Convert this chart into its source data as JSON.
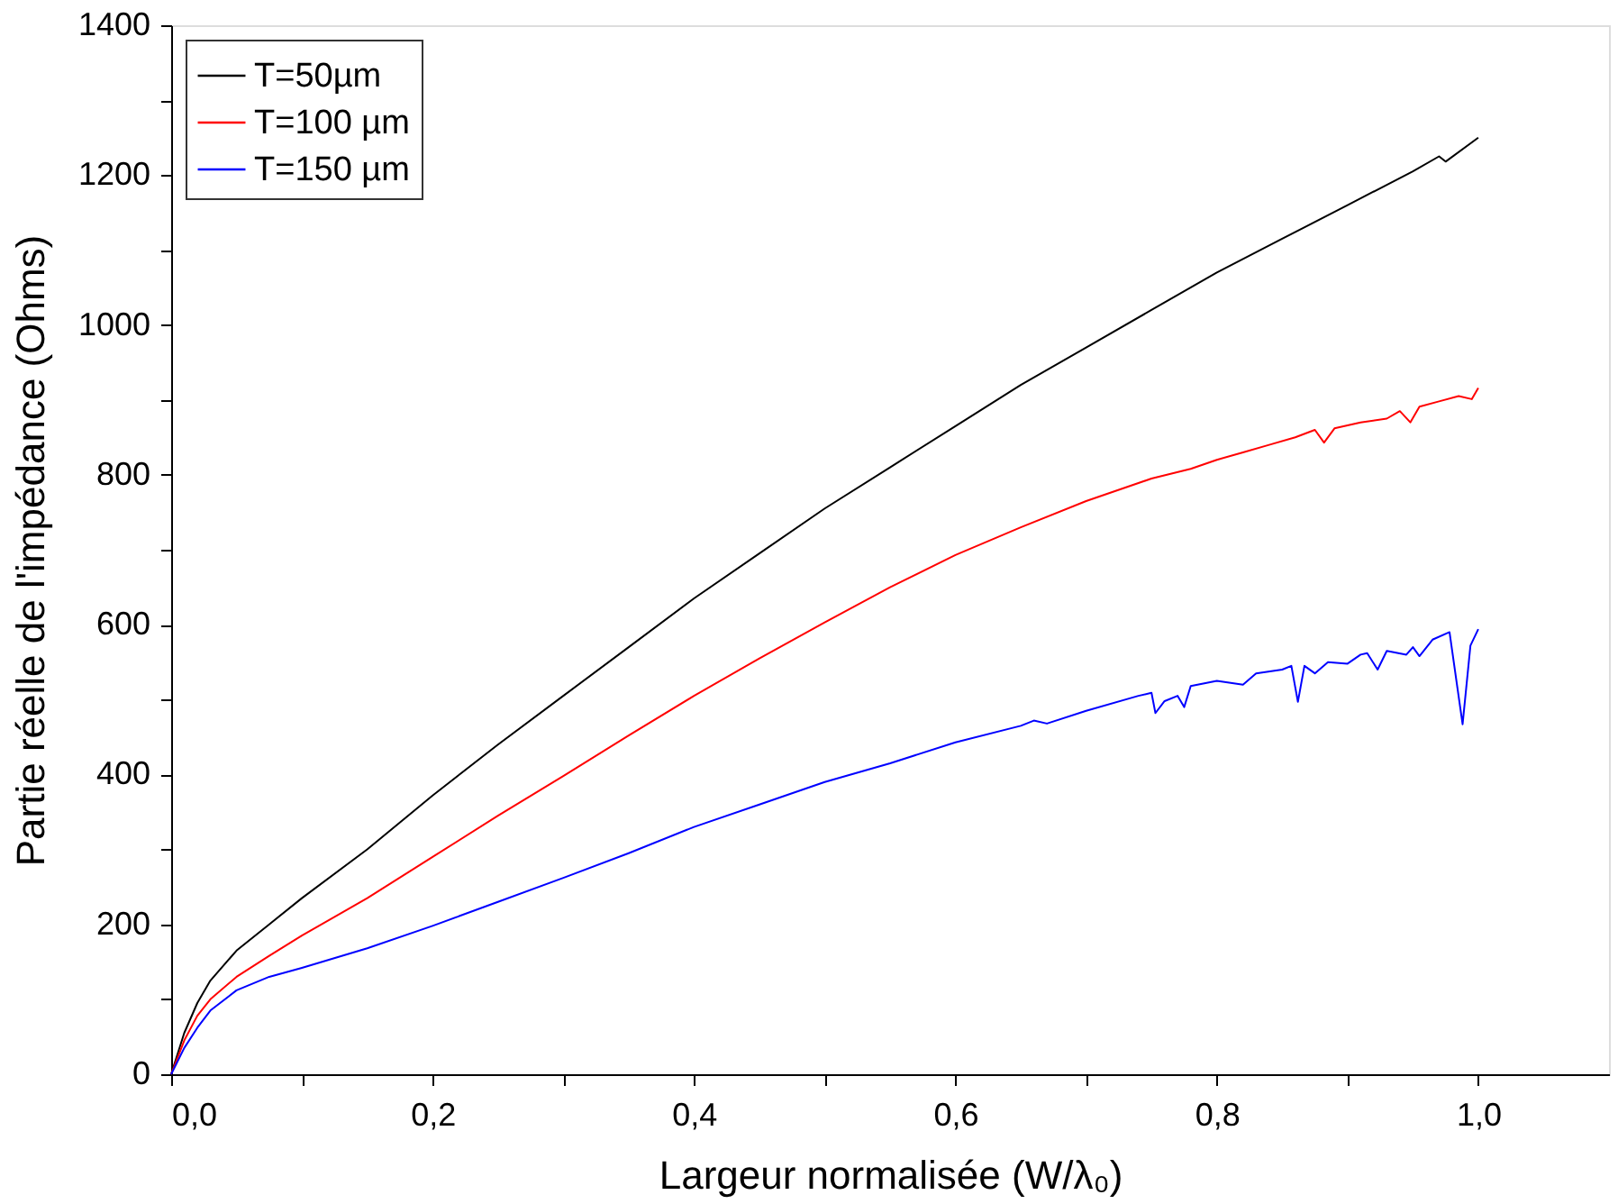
{
  "chart_data": {
    "type": "line",
    "xlabel": "Largeur normalisée (W/λ₀)",
    "ylabel": "Partie réelle de l'impédance (Ohms)",
    "xlim": [
      0,
      1.1
    ],
    "xticks": [
      {
        "value": 0,
        "label": "0,0"
      },
      {
        "value": 0.1,
        "label": null
      },
      {
        "value": 0.2,
        "label": "0,2"
      },
      {
        "value": 0.3,
        "label": null
      },
      {
        "value": 0.4,
        "label": "0,4"
      },
      {
        "value": 0.5,
        "label": null
      },
      {
        "value": 0.6,
        "label": "0,6"
      },
      {
        "value": 0.7,
        "label": null
      },
      {
        "value": 0.8,
        "label": "0,8"
      },
      {
        "value": 0.9,
        "label": null
      },
      {
        "value": 1.0,
        "label": "1,0"
      }
    ],
    "ylim": [
      0,
      1400
    ],
    "yticks": [
      0,
      {
        "value": 100,
        "label": null
      },
      200,
      {
        "value": 300,
        "label": null
      },
      400,
      {
        "value": 500,
        "label": null
      },
      600,
      {
        "value": 700,
        "label": null
      },
      800,
      {
        "value": 900,
        "label": null
      },
      1000,
      {
        "value": 1100,
        "label": null
      },
      1200,
      {
        "value": 1300,
        "label": null
      },
      1400
    ],
    "grid": false,
    "legend": "top left",
    "line_style": "solid",
    "marker": "none",
    "series": [
      {
        "name": "T=50µm",
        "color": "#000000",
        "x": [
          0,
          0.01,
          0.02,
          0.03,
          0.05,
          0.075,
          0.1,
          0.15,
          0.2,
          0.25,
          0.3,
          0.35,
          0.4,
          0.45,
          0.5,
          0.55,
          0.6,
          0.65,
          0.7,
          0.75,
          0.8,
          0.85,
          0.9,
          0.95,
          0.97,
          0.975,
          1.0
        ],
        "values": [
          0,
          55,
          95,
          125,
          165,
          200,
          235,
          300,
          372,
          440,
          505,
          570,
          635,
          695,
          755,
          810,
          865,
          920,
          970,
          1020,
          1070,
          1115,
          1160,
          1205,
          1225,
          1218,
          1250
        ]
      },
      {
        "name": "T=100 µm",
        "color": "#ff0000",
        "x": [
          0,
          0.01,
          0.02,
          0.03,
          0.05,
          0.075,
          0.1,
          0.15,
          0.2,
          0.25,
          0.3,
          0.35,
          0.4,
          0.45,
          0.5,
          0.55,
          0.6,
          0.65,
          0.7,
          0.75,
          0.78,
          0.8,
          0.82,
          0.84,
          0.86,
          0.875,
          0.882,
          0.89,
          0.91,
          0.93,
          0.94,
          0.948,
          0.955,
          0.97,
          0.985,
          0.995,
          1.0
        ],
        "values": [
          0,
          45,
          78,
          100,
          130,
          158,
          185,
          235,
          290,
          345,
          398,
          452,
          505,
          555,
          603,
          650,
          693,
          730,
          765,
          795,
          808,
          820,
          830,
          840,
          850,
          860,
          843,
          862,
          870,
          875,
          885,
          870,
          891,
          898,
          905,
          901,
          916
        ]
      },
      {
        "name": "T=150 µm",
        "color": "#0000ff",
        "x": [
          0,
          0.01,
          0.02,
          0.03,
          0.05,
          0.075,
          0.1,
          0.15,
          0.2,
          0.25,
          0.3,
          0.35,
          0.4,
          0.45,
          0.5,
          0.55,
          0.6,
          0.65,
          0.66,
          0.67,
          0.7,
          0.74,
          0.75,
          0.753,
          0.76,
          0.77,
          0.775,
          0.78,
          0.8,
          0.82,
          0.83,
          0.85,
          0.857,
          0.862,
          0.867,
          0.875,
          0.885,
          0.9,
          0.91,
          0.915,
          0.923,
          0.93,
          0.945,
          0.95,
          0.955,
          0.965,
          0.978,
          0.988,
          0.994,
          1.0
        ],
        "values": [
          0,
          35,
          62,
          85,
          112,
          130,
          142,
          168,
          198,
          230,
          262,
          295,
          330,
          360,
          390,
          415,
          443,
          465,
          472,
          468,
          485,
          505,
          509,
          482,
          498,
          505,
          490,
          518,
          525,
          520,
          535,
          540,
          545,
          497,
          545,
          535,
          550,
          548,
          560,
          562,
          540,
          565,
          560,
          570,
          558,
          580,
          590,
          467,
          572,
          594
        ]
      }
    ]
  }
}
